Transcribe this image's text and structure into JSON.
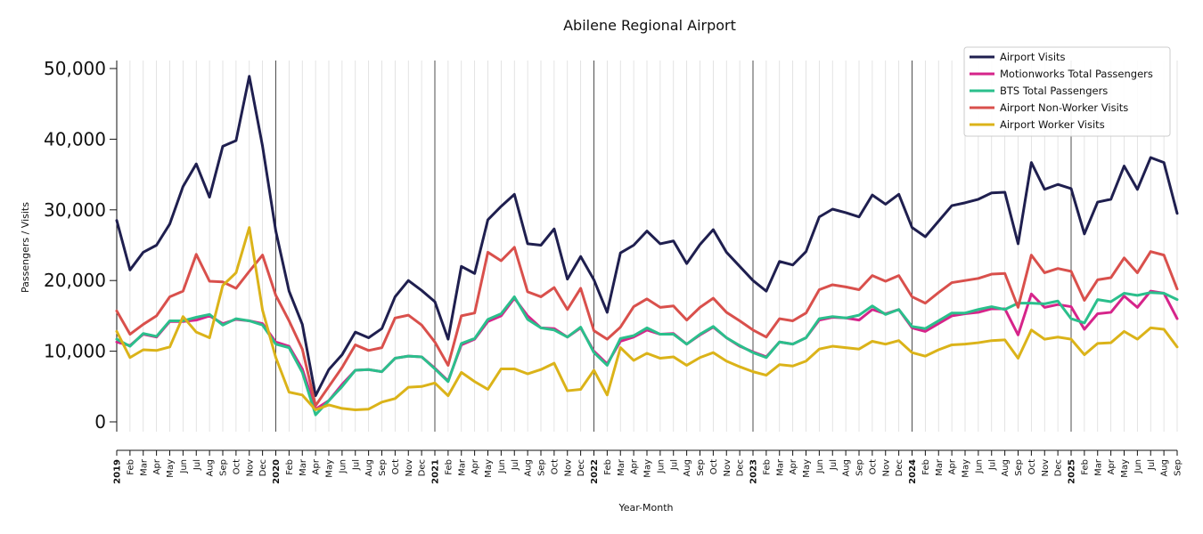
{
  "chart_data": {
    "type": "line",
    "title": "Abilene Regional Airport",
    "xlabel": "Year-Month",
    "ylabel": "Passengers / Visits",
    "ylim": [
      0,
      51000
    ],
    "yticks": [
      0,
      10000,
      20000,
      30000,
      40000,
      50000
    ],
    "ytick_labels": [
      "0",
      "10,000",
      "20,000",
      "30,000",
      "40,000",
      "50,000"
    ],
    "grid": "vertical monthly lines; darker lines at each January",
    "legend_position": "top-right",
    "x": [
      "2019-01",
      "2019-02",
      "2019-03",
      "2019-04",
      "2019-05",
      "2019-06",
      "2019-07",
      "2019-08",
      "2019-09",
      "2019-10",
      "2019-11",
      "2019-12",
      "2020-01",
      "2020-02",
      "2020-03",
      "2020-04",
      "2020-05",
      "2020-06",
      "2020-07",
      "2020-08",
      "2020-09",
      "2020-10",
      "2020-11",
      "2020-12",
      "2021-01",
      "2021-02",
      "2021-03",
      "2021-04",
      "2021-05",
      "2021-06",
      "2021-07",
      "2021-08",
      "2021-09",
      "2021-10",
      "2021-11",
      "2021-12",
      "2022-01",
      "2022-02",
      "2022-03",
      "2022-04",
      "2022-05",
      "2022-06",
      "2022-07",
      "2022-08",
      "2022-09",
      "2022-10",
      "2022-11",
      "2022-12",
      "2023-01",
      "2023-02",
      "2023-03",
      "2023-04",
      "2023-05",
      "2023-06",
      "2023-07",
      "2023-08",
      "2023-09",
      "2023-10",
      "2023-11",
      "2023-12",
      "2024-01",
      "2024-02",
      "2024-03",
      "2024-04",
      "2024-05",
      "2024-06",
      "2024-07",
      "2024-08",
      "2024-09",
      "2024-10",
      "2024-11",
      "2024-12",
      "2025-01",
      "2025-02",
      "2025-03",
      "2025-04",
      "2025-05",
      "2025-06",
      "2025-07",
      "2025-08",
      "2025-09"
    ],
    "x_tick_labels": [
      "2019",
      "Feb",
      "Mar",
      "Apr",
      "May",
      "Jun",
      "Jul",
      "Aug",
      "Sep",
      "Oct",
      "Nov",
      "Dec",
      "2020",
      "Feb",
      "Mar",
      "Apr",
      "May",
      "Jun",
      "Jul",
      "Aug",
      "Sep",
      "Oct",
      "Nov",
      "Dec",
      "2021",
      "Feb",
      "Mar",
      "Apr",
      "May",
      "Jun",
      "Jul",
      "Aug",
      "Sep",
      "Oct",
      "Nov",
      "Dec",
      "2022",
      "Feb",
      "Mar",
      "Apr",
      "May",
      "Jun",
      "Jul",
      "Aug",
      "Sep",
      "Oct",
      "Nov",
      "Dec",
      "2023",
      "Feb",
      "Mar",
      "Apr",
      "May",
      "Jun",
      "Jul",
      "Aug",
      "Sep",
      "Oct",
      "Nov",
      "Dec",
      "2024",
      "Feb",
      "Mar",
      "Apr",
      "May",
      "Jun",
      "Jul",
      "Aug",
      "Sep",
      "Oct",
      "Nov",
      "Dec",
      "2025",
      "Feb",
      "Mar",
      "Apr",
      "May",
      "Jun",
      "Jul",
      "Aug",
      "Sep"
    ],
    "series": [
      {
        "name": "Airport Visits",
        "color": "#1f1f4f",
        "values": [
          28500,
          21500,
          24000,
          25000,
          28000,
          33300,
          36500,
          31800,
          39000,
          39800,
          48900,
          39000,
          27000,
          18500,
          13800,
          3700,
          7400,
          9500,
          12700,
          11900,
          13200,
          17700,
          20000,
          18600,
          17000,
          11700,
          22000,
          21000,
          28600,
          30500,
          32200,
          25200,
          25000,
          27300,
          20200,
          23400,
          20100,
          15500,
          23900,
          25000,
          27000,
          25200,
          25600,
          22400,
          25100,
          27200,
          24000,
          22000,
          20000,
          18500,
          22700,
          22200,
          24100,
          29000,
          30100,
          29600,
          29000,
          32100,
          30800,
          32200,
          27500,
          26200,
          28400,
          30600,
          31000,
          31500,
          32400,
          32500,
          25200,
          36700,
          32900,
          33600,
          33000,
          26600,
          31100,
          31500,
          36200,
          32900,
          37400,
          36700,
          29500
        ]
      },
      {
        "name": "Motionworks Total Passengers",
        "color": "#d6248a",
        "values": [
          11300,
          10800,
          12400,
          12000,
          14200,
          14200,
          14400,
          15000,
          13900,
          14500,
          14300,
          13900,
          11300,
          10700,
          7500,
          1800,
          3000,
          5300,
          7300,
          7400,
          7100,
          9000,
          9300,
          9200,
          7600,
          5800,
          10900,
          11700,
          14200,
          15000,
          17500,
          15000,
          13300,
          13200,
          12000,
          13300,
          10000,
          8200,
          11400,
          12000,
          13000,
          12400,
          12500,
          11000,
          12300,
          13400,
          11900,
          10700,
          9900,
          9200,
          11300,
          11000,
          11900,
          14400,
          14800,
          14700,
          14400,
          15900,
          15300,
          15900,
          13300,
          12800,
          13900,
          15000,
          15300,
          15500,
          16000,
          16000,
          12300,
          18100,
          16200,
          16600,
          16300,
          13100,
          15300,
          15500,
          17800,
          16200,
          18500,
          18200,
          14600
        ]
      },
      {
        "name": "BTS Total Passengers",
        "color": "#2bbf8c",
        "values": [
          11700,
          10700,
          12500,
          12100,
          14300,
          14300,
          14800,
          15200,
          13700,
          14600,
          14300,
          13700,
          11000,
          10500,
          7000,
          1000,
          3000,
          5000,
          7300,
          7400,
          7100,
          9000,
          9300,
          9200,
          7500,
          5700,
          11100,
          11800,
          14500,
          15300,
          17700,
          14500,
          13300,
          13000,
          12000,
          13400,
          9800,
          8000,
          11800,
          12200,
          13300,
          12400,
          12400,
          11000,
          12400,
          13500,
          11900,
          10800,
          9800,
          9100,
          11300,
          11000,
          11900,
          14600,
          14900,
          14700,
          15100,
          16400,
          15200,
          15900,
          13500,
          13200,
          14300,
          15400,
          15400,
          15900,
          16300,
          15900,
          16800,
          16800,
          16700,
          17100,
          14600,
          14000,
          17300,
          17000,
          18200,
          17900,
          18300,
          18200,
          17300
        ]
      },
      {
        "name": "Airport Non-Worker Visits",
        "color": "#d9504c",
        "values": [
          15700,
          12400,
          13800,
          15000,
          17700,
          18500,
          23700,
          19900,
          19800,
          18900,
          21300,
          23600,
          17900,
          14300,
          10300,
          2300,
          5000,
          7700,
          10900,
          10100,
          10500,
          14700,
          15100,
          13700,
          11300,
          8000,
          15000,
          15400,
          24000,
          22800,
          24700,
          18400,
          17700,
          19000,
          15900,
          18900,
          12900,
          11700,
          13400,
          16300,
          17400,
          16200,
          16400,
          14400,
          16200,
          17500,
          15500,
          14300,
          13000,
          12000,
          14600,
          14300,
          15400,
          18700,
          19400,
          19100,
          18700,
          20700,
          19900,
          20700,
          17700,
          16800,
          18300,
          19700,
          20000,
          20300,
          20900,
          21000,
          16200,
          23600,
          21100,
          21700,
          21300,
          17200,
          20100,
          20400,
          23200,
          21100,
          24100,
          23600,
          18800
        ]
      },
      {
        "name": "Airport Worker Visits",
        "color": "#dbb319",
        "values": [
          12800,
          9100,
          10200,
          10100,
          10600,
          14900,
          12700,
          11900,
          19300,
          21100,
          27500,
          15800,
          9100,
          4200,
          3800,
          1700,
          2400,
          1900,
          1700,
          1800,
          2800,
          3300,
          4900,
          5000,
          5500,
          3700,
          7000,
          5700,
          4600,
          7500,
          7500,
          6800,
          7400,
          8300,
          4400,
          4600,
          7300,
          3800,
          10500,
          8700,
          9700,
          9000,
          9200,
          8000,
          9100,
          9800,
          8600,
          7800,
          7100,
          6600,
          8100,
          7900,
          8600,
          10300,
          10700,
          10500,
          10300,
          11400,
          11000,
          11500,
          9800,
          9300,
          10200,
          10900,
          11000,
          11200,
          11500,
          11600,
          9000,
          13000,
          11700,
          12000,
          11700,
          9500,
          11100,
          11200,
          12800,
          11700,
          13300,
          13100,
          10600
        ]
      }
    ]
  }
}
